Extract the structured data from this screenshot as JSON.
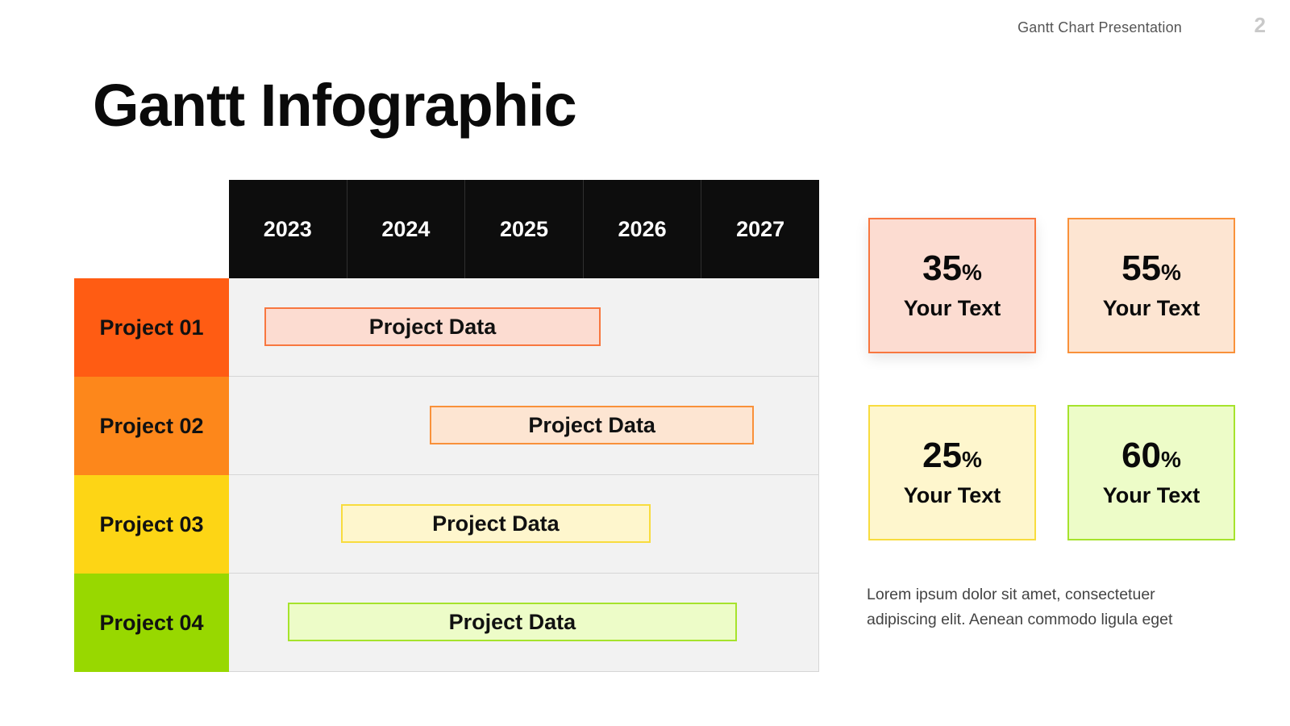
{
  "header": {
    "title": "Gantt Chart Presentation",
    "page_number": "2"
  },
  "page_title": "Gantt Infographic",
  "chart_data": {
    "type": "gantt",
    "categories": [
      "2023",
      "2024",
      "2025",
      "2026",
      "2027"
    ],
    "xlim": [
      2023,
      2028
    ],
    "tasks": [
      {
        "name": "Project 01",
        "bar_label": "Project Data",
        "start": 2023.3,
        "end": 2026.15,
        "row_color": "#ff5c13",
        "bar_fill": "#fcdcd1",
        "bar_border": "#f8773f"
      },
      {
        "name": "Project 02",
        "bar_label": "Project Data",
        "start": 2024.7,
        "end": 2027.45,
        "row_color": "#fd871b",
        "bar_fill": "#fde5d2",
        "bar_border": "#f9913a"
      },
      {
        "name": "Project 03",
        "bar_label": "Project Data",
        "start": 2023.95,
        "end": 2026.57,
        "row_color": "#fdd515",
        "bar_fill": "#fef6cd",
        "bar_border": "#f8dc3e"
      },
      {
        "name": "Project 04",
        "bar_label": "Project Data",
        "start": 2023.5,
        "end": 2027.3,
        "row_color": "#98d800",
        "bar_fill": "#edfcc8",
        "bar_border": "#a6e32c"
      }
    ]
  },
  "stats": [
    {
      "value": "35",
      "unit": "%",
      "label": "Your Text",
      "fill": "#fcdcd1",
      "border": "#f8773f"
    },
    {
      "value": "55",
      "unit": "%",
      "label": "Your Text",
      "fill": "#fde5d2",
      "border": "#f9913a"
    },
    {
      "value": "25",
      "unit": "%",
      "label": "Your Text",
      "fill": "#fef6cd",
      "border": "#f8dc3e"
    },
    {
      "value": "60",
      "unit": "%",
      "label": "Your Text",
      "fill": "#edfcc8",
      "border": "#a6e32c"
    }
  ],
  "description": "Lorem ipsum dolor sit amet, consectetuer adipiscing elit. Aenean commodo ligula eget"
}
